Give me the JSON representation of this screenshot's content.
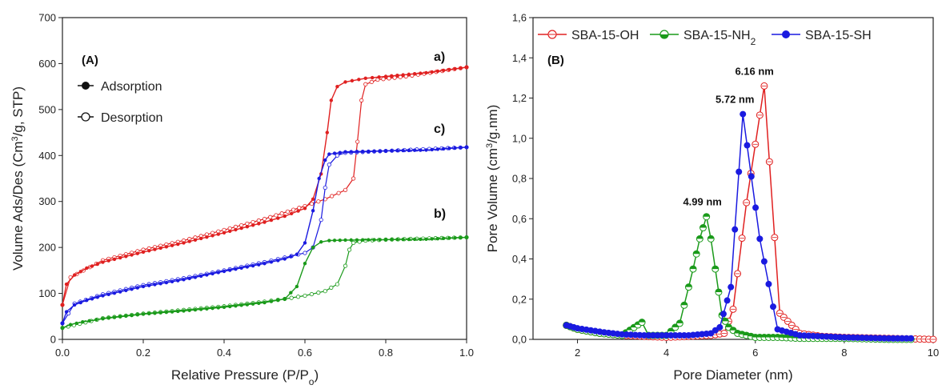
{
  "chart_data": [
    {
      "type": "line",
      "panel_label": "(A)",
      "xlabel": "Relative Pressure (P/P",
      "xlabel_sub": "o",
      "xlabel_close": ")",
      "ylabel_pre": "Volume Ads/Des (Cm",
      "ylabel_sup": "3",
      "ylabel_post": "/g, STP)",
      "xlim": [
        0,
        1.0
      ],
      "ylim": [
        0,
        700
      ],
      "x_ticks": [
        "0.0",
        "0.2",
        "0.4",
        "0.6",
        "0.8",
        "1.0"
      ],
      "y_ticks": [
        "0",
        "100",
        "200",
        "300",
        "400",
        "500",
        "600",
        "700"
      ],
      "legend": [
        {
          "label": "Adsorption",
          "marker": "filled-circle"
        },
        {
          "label": "Desorption",
          "marker": "open-circle"
        }
      ],
      "series": [
        {
          "name": "a)",
          "color": "#e02020",
          "adsorption": [
            [
              0.0,
              75
            ],
            [
              0.01,
              120
            ],
            [
              0.03,
              140
            ],
            [
              0.06,
              155
            ],
            [
              0.1,
              168
            ],
            [
              0.2,
              190
            ],
            [
              0.3,
              210
            ],
            [
              0.4,
              232
            ],
            [
              0.5,
              255
            ],
            [
              0.55,
              268
            ],
            [
              0.6,
              285
            ],
            [
              0.62,
              305
            ],
            [
              0.64,
              360
            ],
            [
              0.655,
              450
            ],
            [
              0.665,
              520
            ],
            [
              0.68,
              550
            ],
            [
              0.7,
              560
            ],
            [
              0.75,
              568
            ],
            [
              0.8,
              572
            ],
            [
              0.9,
              580
            ],
            [
              1.0,
              592
            ]
          ],
          "desorption": [
            [
              0.0,
              75
            ],
            [
              0.02,
              135
            ],
            [
              0.1,
              172
            ],
            [
              0.2,
              195
            ],
            [
              0.3,
              215
            ],
            [
              0.4,
              238
            ],
            [
              0.5,
              262
            ],
            [
              0.6,
              290
            ],
            [
              0.65,
              305
            ],
            [
              0.7,
              325
            ],
            [
              0.72,
              350
            ],
            [
              0.73,
              430
            ],
            [
              0.74,
              520
            ],
            [
              0.75,
              555
            ],
            [
              0.78,
              565
            ],
            [
              0.85,
              572
            ],
            [
              1.0,
              592
            ]
          ]
        },
        {
          "name": "c)",
          "color": "#1a1ae0",
          "adsorption": [
            [
              0.0,
              35
            ],
            [
              0.01,
              60
            ],
            [
              0.03,
              75
            ],
            [
              0.06,
              85
            ],
            [
              0.1,
              95
            ],
            [
              0.2,
              115
            ],
            [
              0.3,
              130
            ],
            [
              0.4,
              148
            ],
            [
              0.5,
              165
            ],
            [
              0.55,
              175
            ],
            [
              0.58,
              185
            ],
            [
              0.6,
              210
            ],
            [
              0.62,
              280
            ],
            [
              0.635,
              350
            ],
            [
              0.65,
              390
            ],
            [
              0.66,
              403
            ],
            [
              0.7,
              408
            ],
            [
              0.8,
              410
            ],
            [
              0.9,
              412
            ],
            [
              1.0,
              418
            ]
          ],
          "desorption": [
            [
              0.0,
              35
            ],
            [
              0.03,
              78
            ],
            [
              0.1,
              98
            ],
            [
              0.2,
              118
            ],
            [
              0.3,
              133
            ],
            [
              0.4,
              150
            ],
            [
              0.5,
              168
            ],
            [
              0.55,
              178
            ],
            [
              0.6,
              188
            ],
            [
              0.62,
              200
            ],
            [
              0.64,
              260
            ],
            [
              0.65,
              330
            ],
            [
              0.66,
              380
            ],
            [
              0.68,
              400
            ],
            [
              0.7,
              406
            ],
            [
              0.8,
              410
            ],
            [
              1.0,
              418
            ]
          ]
        },
        {
          "name": "b)",
          "color": "#1a9a1a",
          "adsorption": [
            [
              0.0,
              25
            ],
            [
              0.02,
              32
            ],
            [
              0.05,
              38
            ],
            [
              0.1,
              45
            ],
            [
              0.2,
              55
            ],
            [
              0.3,
              62
            ],
            [
              0.4,
              70
            ],
            [
              0.5,
              80
            ],
            [
              0.55,
              88
            ],
            [
              0.58,
              115
            ],
            [
              0.6,
              165
            ],
            [
              0.62,
              200
            ],
            [
              0.64,
              212
            ],
            [
              0.66,
              215
            ],
            [
              0.7,
              216
            ],
            [
              0.8,
              217
            ],
            [
              0.9,
              218
            ],
            [
              1.0,
              222
            ]
          ],
          "desorption": [
            [
              0.0,
              25
            ],
            [
              0.1,
              46
            ],
            [
              0.2,
              56
            ],
            [
              0.3,
              64
            ],
            [
              0.4,
              72
            ],
            [
              0.5,
              82
            ],
            [
              0.55,
              88
            ],
            [
              0.6,
              95
            ],
            [
              0.65,
              105
            ],
            [
              0.68,
              120
            ],
            [
              0.7,
              160
            ],
            [
              0.71,
              195
            ],
            [
              0.72,
              210
            ],
            [
              0.75,
              215
            ],
            [
              0.8,
              217
            ],
            [
              1.0,
              222
            ]
          ]
        }
      ]
    },
    {
      "type": "line",
      "panel_label": "(B)",
      "xlabel": "Pore Diameter (nm)",
      "ylabel_pre": "Pore Volume (cm",
      "ylabel_sup": "3",
      "ylabel_post": "/g.nm)",
      "xlim": [
        1,
        10
      ],
      "ylim": [
        0,
        1.6
      ],
      "x_ticks": [
        "2",
        "4",
        "6",
        "8",
        "10"
      ],
      "y_ticks": [
        "0,0",
        "0,2",
        "0,4",
        "0,6",
        "0,8",
        "1,0",
        "1,2",
        "1,4",
        "1,6"
      ],
      "legend": [
        {
          "label": "SBA-15-OH",
          "sub": "",
          "color": "#e02020",
          "marker": "open-crossed"
        },
        {
          "label": "SBA-15-NH",
          "sub": "2",
          "color": "#1a9a1a",
          "marker": "half-circle"
        },
        {
          "label": "SBA-15-SH",
          "sub": "",
          "color": "#1a1ae0",
          "marker": "filled-circle"
        }
      ],
      "annotations": [
        {
          "text": "6.16 nm",
          "x": 6.16,
          "y": 1.26
        },
        {
          "text": "5.72 nm",
          "x": 5.72,
          "y": 1.12
        },
        {
          "text": "4.99 nm",
          "x": 4.99,
          "y": 0.61
        }
      ],
      "series": [
        {
          "name": "SBA-15-OH",
          "color": "#e02020",
          "points": [
            [
              1.75,
              0.07
            ],
            [
              2.0,
              0.05
            ],
            [
              2.5,
              0.03
            ],
            [
              3.0,
              0.02
            ],
            [
              3.5,
              0.015
            ],
            [
              4.0,
              0.01
            ],
            [
              4.5,
              0.015
            ],
            [
              5.0,
              0.02
            ],
            [
              5.3,
              0.03
            ],
            [
              5.5,
              0.15
            ],
            [
              5.8,
              0.68
            ],
            [
              6.2,
              1.26
            ],
            [
              6.55,
              0.13
            ],
            [
              7.0,
              0.03
            ],
            [
              7.5,
              0.015
            ],
            [
              8.0,
              0.01
            ],
            [
              9.0,
              0.005
            ],
            [
              10.0,
              0.0
            ]
          ]
        },
        {
          "name": "SBA-15-NH2",
          "color": "#1a9a1a",
          "points": [
            [
              1.75,
              0.07
            ],
            [
              2.0,
              0.05
            ],
            [
              2.5,
              0.03
            ],
            [
              3.0,
              0.02
            ],
            [
              3.45,
              0.085
            ],
            [
              3.6,
              0.02
            ],
            [
              4.0,
              0.02
            ],
            [
              4.3,
              0.08
            ],
            [
              4.6,
              0.35
            ],
            [
              4.75,
              0.5
            ],
            [
              4.9,
              0.61
            ],
            [
              5.0,
              0.5
            ],
            [
              5.1,
              0.35
            ],
            [
              5.25,
              0.12
            ],
            [
              5.4,
              0.06
            ],
            [
              5.6,
              0.03
            ],
            [
              6.0,
              0.01
            ],
            [
              6.5,
              0.01
            ],
            [
              7.0,
              0.005
            ],
            [
              8.0,
              0.005
            ],
            [
              9.0,
              0.0
            ],
            [
              9.5,
              0.0
            ]
          ]
        },
        {
          "name": "SBA-15-SH",
          "color": "#1a1ae0",
          "points": [
            [
              1.75,
              0.07
            ],
            [
              2.0,
              0.055
            ],
            [
              2.3,
              0.045
            ],
            [
              2.6,
              0.035
            ],
            [
              3.0,
              0.025
            ],
            [
              3.5,
              0.02
            ],
            [
              4.0,
              0.02
            ],
            [
              4.5,
              0.02
            ],
            [
              5.0,
              0.03
            ],
            [
              5.2,
              0.06
            ],
            [
              5.45,
              0.26
            ],
            [
              5.72,
              1.12
            ],
            [
              6.1,
              0.5
            ],
            [
              6.5,
              0.05
            ],
            [
              7.0,
              0.02
            ],
            [
              8.0,
              0.01
            ],
            [
              9.0,
              0.005
            ],
            [
              9.5,
              0.005
            ]
          ]
        }
      ]
    }
  ]
}
